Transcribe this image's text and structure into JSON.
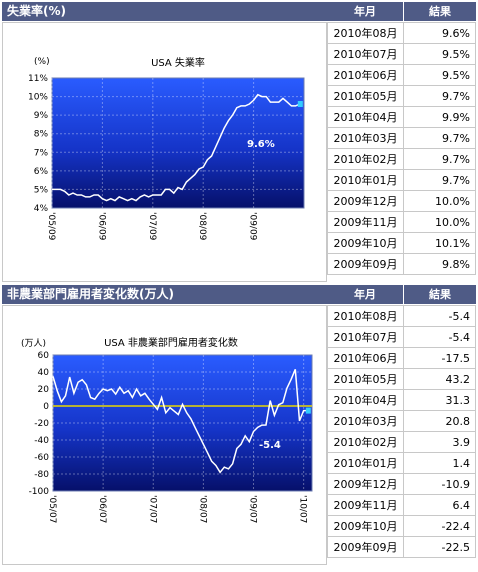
{
  "panel1": {
    "header": "失業率(%)",
    "col_month": "年月",
    "col_result": "結果",
    "rows": [
      {
        "date": "2010年08月",
        "value": "9.6%"
      },
      {
        "date": "2010年07月",
        "value": "9.5%"
      },
      {
        "date": "2010年06月",
        "value": "9.5%"
      },
      {
        "date": "2010年05月",
        "value": "9.7%"
      },
      {
        "date": "2010年04月",
        "value": "9.9%"
      },
      {
        "date": "2010年03月",
        "value": "9.7%"
      },
      {
        "date": "2010年02月",
        "value": "9.7%"
      },
      {
        "date": "2010年01月",
        "value": "9.7%"
      },
      {
        "date": "2009年12月",
        "value": "10.0%"
      },
      {
        "date": "2009年11月",
        "value": "10.0%"
      },
      {
        "date": "2009年10月",
        "value": "10.1%"
      },
      {
        "date": "2009年09月",
        "value": "9.8%"
      }
    ]
  },
  "panel2": {
    "header": "非農業部門雇用者変化数(万人)",
    "col_month": "年月",
    "col_result": "結果",
    "rows": [
      {
        "date": "2010年08月",
        "value": "-5.4"
      },
      {
        "date": "2010年07月",
        "value": "-5.4"
      },
      {
        "date": "2010年06月",
        "value": "-17.5"
      },
      {
        "date": "2010年05月",
        "value": "43.2"
      },
      {
        "date": "2010年04月",
        "value": "31.3"
      },
      {
        "date": "2010年03月",
        "value": "20.8"
      },
      {
        "date": "2010年02月",
        "value": "3.9"
      },
      {
        "date": "2010年01月",
        "value": "1.4"
      },
      {
        "date": "2009年12月",
        "value": "-10.9"
      },
      {
        "date": "2009年11月",
        "value": "6.4"
      },
      {
        "date": "2009年10月",
        "value": "-22.4"
      },
      {
        "date": "2009年09月",
        "value": "-22.5"
      }
    ]
  },
  "chart_data": [
    {
      "type": "line",
      "title": "USA 失業率",
      "ylabel": "(%)",
      "ylim": [
        4,
        11
      ],
      "yticks": [
        "4%",
        "5%",
        "6%",
        "7%",
        "8%",
        "9%",
        "10%",
        "11%"
      ],
      "xticks": [
        "'05/09",
        "'06/09",
        "'07/09",
        "'08/09",
        "'09/09"
      ],
      "annotation": "9.6%",
      "series": [
        {
          "x": [
            "2005-09",
            "2005-10",
            "2005-11",
            "2005-12",
            "2006-01",
            "2006-02",
            "2006-03",
            "2006-04",
            "2006-05",
            "2006-06",
            "2006-07",
            "2006-08",
            "2006-09",
            "2006-10",
            "2006-11",
            "2006-12",
            "2007-01",
            "2007-02",
            "2007-03",
            "2007-04",
            "2007-05",
            "2007-06",
            "2007-07",
            "2007-08",
            "2007-09",
            "2007-10",
            "2007-11",
            "2007-12",
            "2008-01",
            "2008-02",
            "2008-03",
            "2008-04",
            "2008-05",
            "2008-06",
            "2008-07",
            "2008-08",
            "2008-09",
            "2008-10",
            "2008-11",
            "2008-12",
            "2009-01",
            "2009-02",
            "2009-03",
            "2009-04",
            "2009-05",
            "2009-06",
            "2009-07",
            "2009-08",
            "2009-09",
            "2009-10",
            "2009-11",
            "2009-12",
            "2010-01",
            "2010-02",
            "2010-03",
            "2010-04",
            "2010-05",
            "2010-06",
            "2010-07",
            "2010-08"
          ],
          "values": [
            5.0,
            5.0,
            5.0,
            4.9,
            4.7,
            4.8,
            4.7,
            4.7,
            4.6,
            4.6,
            4.7,
            4.7,
            4.5,
            4.4,
            4.5,
            4.4,
            4.6,
            4.5,
            4.4,
            4.5,
            4.4,
            4.6,
            4.7,
            4.6,
            4.7,
            4.7,
            4.7,
            5.0,
            5.0,
            4.8,
            5.1,
            5.0,
            5.4,
            5.6,
            5.8,
            6.1,
            6.2,
            6.6,
            6.8,
            7.3,
            7.8,
            8.3,
            8.7,
            9.0,
            9.4,
            9.5,
            9.5,
            9.6,
            9.8,
            10.1,
            10.0,
            10.0,
            9.7,
            9.7,
            9.7,
            9.9,
            9.7,
            9.5,
            9.5,
            9.6
          ]
        }
      ]
    },
    {
      "type": "line",
      "title": "USA 非農業部門雇用者変化数",
      "ylabel": "(万人)",
      "ylim": [
        -100,
        60
      ],
      "yticks": [
        "-100",
        "-80",
        "-60",
        "-40",
        "-20",
        "0",
        "20",
        "40",
        "60"
      ],
      "xticks": [
        "'05/07",
        "'06/07",
        "'07/07",
        "'08/07",
        "'09/07",
        "'10/07"
      ],
      "annotation": "-5.4",
      "series": [
        {
          "x": [
            "2005-07",
            "2005-08",
            "2005-09",
            "2005-10",
            "2005-11",
            "2005-12",
            "2006-01",
            "2006-02",
            "2006-03",
            "2006-04",
            "2006-05",
            "2006-06",
            "2006-07",
            "2006-08",
            "2006-09",
            "2006-10",
            "2006-11",
            "2006-12",
            "2007-01",
            "2007-02",
            "2007-03",
            "2007-04",
            "2007-05",
            "2007-06",
            "2007-07",
            "2007-08",
            "2007-09",
            "2007-10",
            "2007-11",
            "2007-12",
            "2008-01",
            "2008-02",
            "2008-03",
            "2008-04",
            "2008-05",
            "2008-06",
            "2008-07",
            "2008-08",
            "2008-09",
            "2008-10",
            "2008-11",
            "2008-12",
            "2009-01",
            "2009-02",
            "2009-03",
            "2009-04",
            "2009-05",
            "2009-06",
            "2009-07",
            "2009-08",
            "2009-09",
            "2009-10",
            "2009-11",
            "2009-12",
            "2010-01",
            "2010-02",
            "2010-03",
            "2010-04",
            "2010-05",
            "2010-06",
            "2010-07",
            "2010-08"
          ],
          "values": [
            35,
            18,
            5,
            12,
            34,
            15,
            28,
            31,
            25,
            10,
            8,
            15,
            20,
            18,
            20,
            14,
            22,
            15,
            18,
            10,
            20,
            12,
            15,
            8,
            2,
            -4,
            10,
            -8,
            -2,
            -6,
            -10,
            2,
            -8,
            -15,
            -25,
            -35,
            -45,
            -55,
            -65,
            -70,
            -78,
            -72,
            -74,
            -68,
            -50,
            -45,
            -35,
            -42,
            -30,
            -25,
            -22.5,
            -22.4,
            6.4,
            -10.9,
            1.4,
            3.9,
            20.8,
            31.3,
            43.2,
            -17.5,
            -5.4,
            -5.4
          ]
        }
      ]
    }
  ]
}
